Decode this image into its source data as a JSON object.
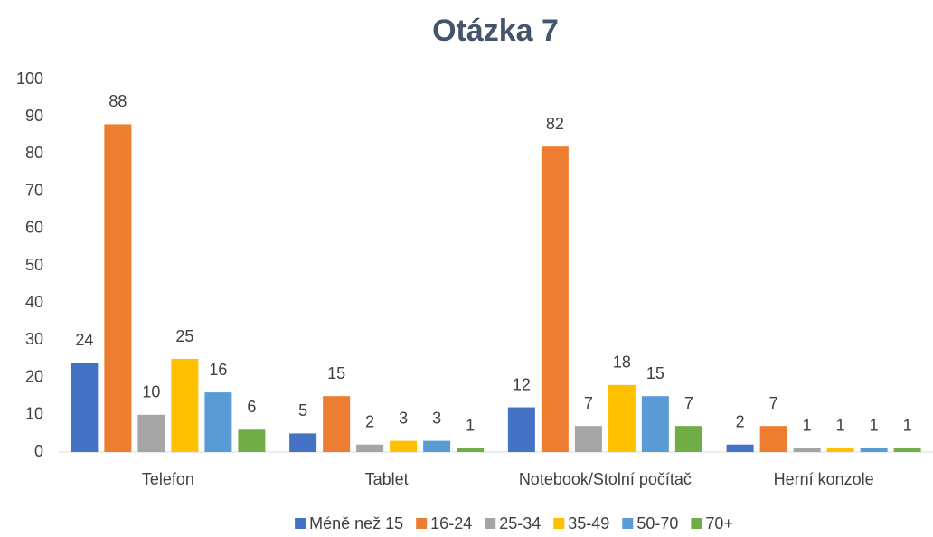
{
  "chart_data": {
    "type": "bar",
    "title": "Otázka 7",
    "categories": [
      "Telefon",
      "Tablet",
      "Notebook/Stolní počítač",
      "Herní konzole"
    ],
    "series": [
      {
        "name": "Méně než 15",
        "color": "#4472c4",
        "values": [
          24,
          5,
          12,
          2
        ]
      },
      {
        "name": "16-24",
        "color": "#ed7d31",
        "values": [
          88,
          15,
          82,
          7
        ]
      },
      {
        "name": "25-34",
        "color": "#a5a5a5",
        "values": [
          10,
          2,
          7,
          1
        ]
      },
      {
        "name": "35-49",
        "color": "#ffc000",
        "values": [
          25,
          3,
          18,
          1
        ]
      },
      {
        "name": "50-70",
        "color": "#5b9bd5",
        "values": [
          16,
          3,
          15,
          1
        ]
      },
      {
        "name": "70+",
        "color": "#70ad47",
        "values": [
          6,
          1,
          7,
          1
        ]
      }
    ],
    "ylim": [
      0,
      100
    ],
    "yticks": [
      0,
      10,
      20,
      30,
      40,
      50,
      60,
      70,
      80,
      90,
      100
    ],
    "grid": false,
    "legend": "bottom"
  }
}
